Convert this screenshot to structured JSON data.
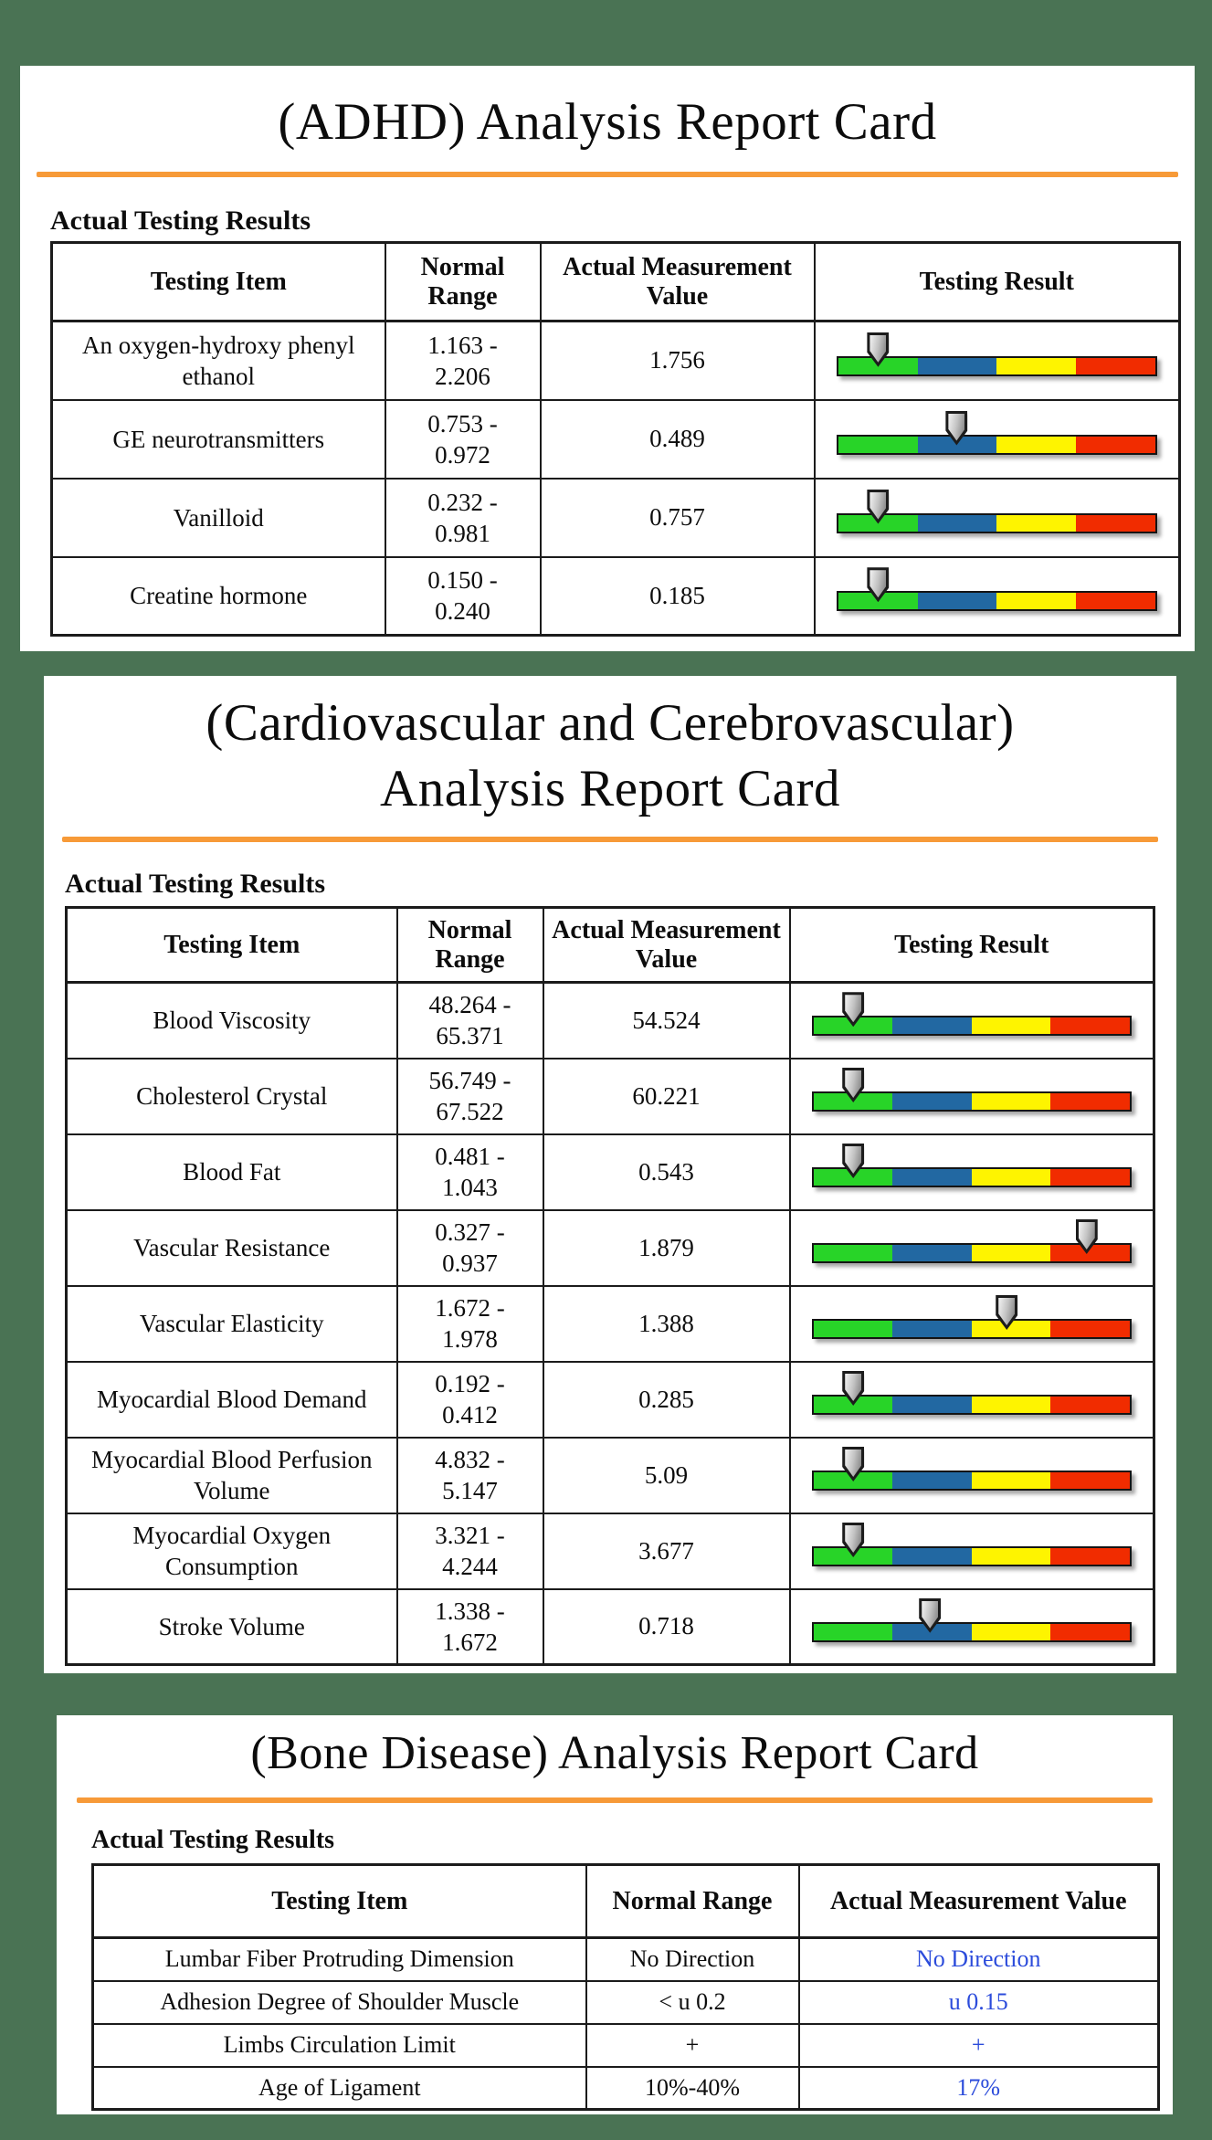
{
  "colors": {
    "background": "#4A7354",
    "divider": "#F79A38",
    "bar_green": "#28D428",
    "bar_blue": "#2268A2",
    "bar_yellow": "#FEF400",
    "bar_red": "#F12C00",
    "highlight_value": "#2C4CDB",
    "marker_gray": "#9E9E9E",
    "table_border": "#1B1B1B"
  },
  "cards": [
    {
      "title_lines": [
        "(ADHD) Analysis Report Card"
      ],
      "section_label": "Actual Testing Results",
      "columns": [
        "Testing Item",
        "Normal Range",
        "Actual Measurement Value",
        "Testing Result"
      ],
      "has_result_bar": true,
      "rows": [
        {
          "item": "An oxygen-hydroxy phenyl ethanol",
          "range": "1.163 -\n2.206",
          "value": "1.756",
          "marker_pct": 13
        },
        {
          "item": "GE neurotransmitters",
          "range": "0.753 -\n0.972",
          "value": "0.489",
          "marker_pct": 37.5
        },
        {
          "item": "Vanilloid",
          "range": "0.232 -\n0.981",
          "value": "0.757",
          "marker_pct": 13
        },
        {
          "item": "Creatine hormone",
          "range": "0.150 -\n0.240",
          "value": "0.185",
          "marker_pct": 13
        }
      ]
    },
    {
      "title_lines": [
        "(Cardiovascular and Cerebrovascular)",
        "Analysis Report Card"
      ],
      "section_label": "Actual Testing Results",
      "columns": [
        "Testing Item",
        "Normal Range",
        "Actual Measurement Value",
        "Testing Result"
      ],
      "has_result_bar": true,
      "rows": [
        {
          "item": "Blood Viscosity",
          "range": "48.264 -\n65.371",
          "value": "54.524",
          "marker_pct": 13
        },
        {
          "item": "Cholesterol Crystal",
          "range": "56.749 -\n67.522",
          "value": "60.221",
          "marker_pct": 13
        },
        {
          "item": "Blood Fat",
          "range": "0.481 -\n1.043",
          "value": "0.543",
          "marker_pct": 13
        },
        {
          "item": "Vascular Resistance",
          "range": "0.327 -\n0.937",
          "value": "1.879",
          "marker_pct": 86
        },
        {
          "item": "Vascular Elasticity",
          "range": "1.672 -\n1.978",
          "value": "1.388",
          "marker_pct": 61
        },
        {
          "item": "Myocardial Blood Demand",
          "range": "0.192 -\n0.412",
          "value": "0.285",
          "marker_pct": 13
        },
        {
          "item": "Myocardial Blood Perfusion Volume",
          "range": "4.832 -\n5.147",
          "value": "5.09",
          "marker_pct": 13
        },
        {
          "item": "Myocardial Oxygen Consumption",
          "range": "3.321 -\n4.244",
          "value": "3.677",
          "marker_pct": 13
        },
        {
          "item": "Stroke Volume",
          "range": "1.338 -\n1.672",
          "value": "0.718",
          "marker_pct": 37
        }
      ]
    },
    {
      "title_lines": [
        "(Bone Disease) Analysis Report Card"
      ],
      "section_label": "Actual Testing Results",
      "columns": [
        "Testing Item",
        "Normal Range",
        "Actual Measurement Value"
      ],
      "has_result_bar": false,
      "rows": [
        {
          "item": "Lumbar Fiber Protruding Dimension",
          "range": "No Direction",
          "value": "No Direction",
          "value_blue": true
        },
        {
          "item": "Adhesion Degree of Shoulder Muscle",
          "range": "< u 0.2",
          "value": "u 0.15",
          "value_blue": true
        },
        {
          "item": "Limbs Circulation Limit",
          "range": "+",
          "value": "+",
          "value_blue": true
        },
        {
          "item": "Age of Ligament",
          "range": "10%-40%",
          "value": "17%",
          "value_blue": true
        }
      ]
    }
  ]
}
